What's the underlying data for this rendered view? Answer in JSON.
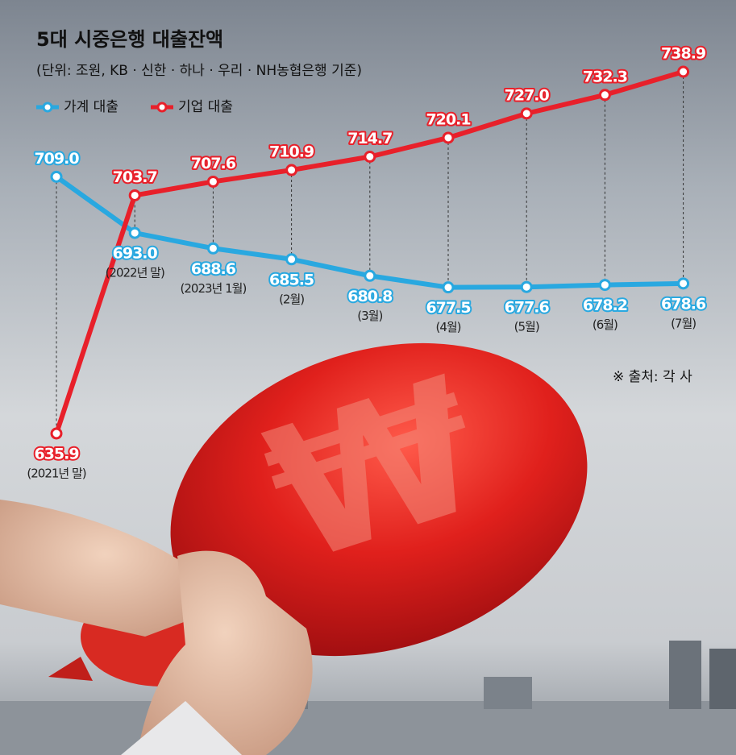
{
  "chart_data": {
    "type": "line",
    "title": "5대 시중은행 대출잔액",
    "subtitle": "(단위: 조원, KB · 신한 · 하나 · 우리 · NH농협은행 기준)",
    "source": "※ 출처: 각 사",
    "categories": [
      "(2021년 말)",
      "(2022년 말)",
      "(2023년 1월)",
      "(2월)",
      "(3월)",
      "(4월)",
      "(5월)",
      "(6월)",
      "(7월)"
    ],
    "series": [
      {
        "name": "가계 대출",
        "color": "#29a8e0",
        "values": [
          709.0,
          693.0,
          688.6,
          685.5,
          680.8,
          677.5,
          677.6,
          678.2,
          678.6
        ],
        "value_labels": [
          "709.0",
          "693.0",
          "688.6",
          "685.5",
          "680.8",
          "677.5",
          "677.6",
          "678.2",
          "678.6"
        ]
      },
      {
        "name": "기업 대출",
        "color": "#e8202a",
        "values": [
          635.9,
          703.7,
          707.6,
          710.9,
          714.7,
          720.1,
          727.0,
          732.3,
          738.9
        ],
        "value_labels": [
          "635.9",
          "703.7",
          "707.6",
          "710.9",
          "714.7",
          "720.1",
          "727.0",
          "732.3",
          "738.9"
        ]
      }
    ]
  }
}
